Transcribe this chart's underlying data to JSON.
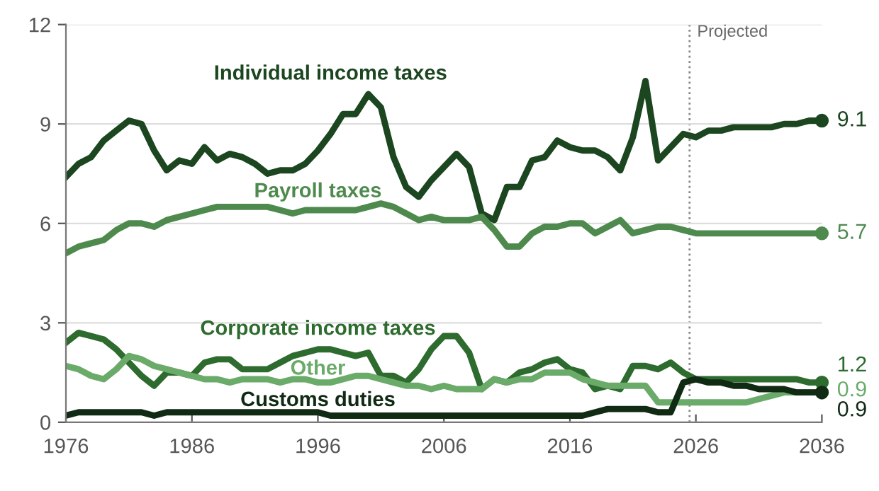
{
  "chart_data": {
    "type": "line",
    "x": [
      1976,
      1977,
      1978,
      1979,
      1980,
      1981,
      1982,
      1983,
      1984,
      1985,
      1986,
      1987,
      1988,
      1989,
      1990,
      1991,
      1992,
      1993,
      1994,
      1995,
      1996,
      1997,
      1998,
      1999,
      2000,
      2001,
      2002,
      2003,
      2004,
      2005,
      2006,
      2007,
      2008,
      2009,
      2010,
      2011,
      2012,
      2013,
      2014,
      2015,
      2016,
      2017,
      2018,
      2019,
      2020,
      2021,
      2022,
      2023,
      2024,
      2025,
      2026,
      2027,
      2028,
      2029,
      2030,
      2031,
      2032,
      2033,
      2034,
      2035,
      2036
    ],
    "series": [
      {
        "name": "Individual income taxes",
        "color": "#1b4620",
        "values": [
          7.4,
          7.8,
          8.0,
          8.5,
          8.8,
          9.1,
          9.0,
          8.2,
          7.6,
          7.9,
          7.8,
          8.3,
          7.9,
          8.1,
          8.0,
          7.8,
          7.5,
          7.6,
          7.6,
          7.8,
          8.2,
          8.7,
          9.3,
          9.3,
          9.9,
          9.5,
          8.0,
          7.1,
          6.8,
          7.3,
          7.7,
          8.1,
          7.7,
          6.3,
          6.1,
          7.1,
          7.1,
          7.9,
          8.0,
          8.5,
          8.3,
          8.2,
          8.2,
          8.0,
          7.6,
          8.6,
          10.3,
          7.9,
          8.3,
          8.7,
          8.6,
          8.8,
          8.8,
          8.9,
          8.9,
          8.9,
          8.9,
          9.0,
          9.0,
          9.1,
          9.1
        ],
        "value_labels": [
          null,
          null,
          null,
          null,
          null,
          null,
          null,
          null,
          null,
          null,
          null,
          null,
          null,
          null,
          null,
          null,
          null,
          null,
          null,
          null,
          null,
          null,
          null,
          null,
          null,
          null,
          null,
          null,
          null,
          null,
          null,
          null,
          null,
          null,
          null,
          null,
          null,
          null,
          null,
          null,
          null,
          null,
          null,
          null,
          null,
          null,
          null,
          null,
          null,
          null,
          null,
          null,
          null,
          null,
          null,
          null,
          null,
          null,
          null,
          null,
          "9.1"
        ]
      },
      {
        "name": "Payroll taxes",
        "color": "#4e8a4e",
        "values": [
          5.1,
          5.3,
          5.4,
          5.5,
          5.8,
          6.0,
          6.0,
          5.9,
          6.1,
          6.2,
          6.3,
          6.4,
          6.5,
          6.5,
          6.5,
          6.5,
          6.5,
          6.4,
          6.3,
          6.4,
          6.4,
          6.4,
          6.4,
          6.4,
          6.5,
          6.6,
          6.5,
          6.3,
          6.1,
          6.2,
          6.1,
          6.1,
          6.1,
          6.2,
          5.8,
          5.3,
          5.3,
          5.7,
          5.9,
          5.9,
          6.0,
          6.0,
          5.7,
          5.9,
          6.1,
          5.7,
          5.8,
          5.9,
          5.9,
          5.8,
          5.7,
          5.7,
          5.7,
          5.7,
          5.7,
          5.7,
          5.7,
          5.7,
          5.7,
          5.7,
          5.7
        ],
        "value_labels": [
          null,
          null,
          null,
          null,
          null,
          null,
          null,
          null,
          null,
          null,
          null,
          null,
          null,
          null,
          null,
          null,
          null,
          null,
          null,
          null,
          null,
          null,
          null,
          null,
          null,
          null,
          null,
          null,
          null,
          null,
          null,
          null,
          null,
          null,
          null,
          null,
          null,
          null,
          null,
          null,
          null,
          null,
          null,
          null,
          null,
          null,
          null,
          null,
          null,
          null,
          null,
          null,
          null,
          null,
          null,
          null,
          null,
          null,
          null,
          null,
          "5.7"
        ]
      },
      {
        "name": "Corporate income taxes",
        "color": "#2e6b2e",
        "values": [
          2.4,
          2.7,
          2.6,
          2.5,
          2.2,
          1.8,
          1.4,
          1.1,
          1.5,
          1.5,
          1.4,
          1.8,
          1.9,
          1.9,
          1.6,
          1.6,
          1.6,
          1.8,
          2.0,
          2.1,
          2.2,
          2.2,
          2.1,
          2.0,
          2.1,
          1.4,
          1.4,
          1.2,
          1.6,
          2.2,
          2.6,
          2.6,
          2.1,
          1.0,
          1.3,
          1.2,
          1.5,
          1.6,
          1.8,
          1.9,
          1.6,
          1.5,
          1.0,
          1.1,
          1.0,
          1.7,
          1.7,
          1.6,
          1.8,
          1.5,
          1.3,
          1.3,
          1.3,
          1.3,
          1.3,
          1.3,
          1.3,
          1.3,
          1.3,
          1.2,
          1.2
        ],
        "value_labels": [
          null,
          null,
          null,
          null,
          null,
          null,
          null,
          null,
          null,
          null,
          null,
          null,
          null,
          null,
          null,
          null,
          null,
          null,
          null,
          null,
          null,
          null,
          null,
          null,
          null,
          null,
          null,
          null,
          null,
          null,
          null,
          null,
          null,
          null,
          null,
          null,
          null,
          null,
          null,
          null,
          null,
          null,
          null,
          null,
          null,
          null,
          null,
          null,
          null,
          null,
          null,
          null,
          null,
          null,
          null,
          null,
          null,
          null,
          null,
          null,
          "1.2"
        ]
      },
      {
        "name": "Other",
        "color": "#6aab6a",
        "values": [
          1.7,
          1.6,
          1.4,
          1.3,
          1.6,
          2.0,
          1.9,
          1.7,
          1.6,
          1.5,
          1.4,
          1.3,
          1.3,
          1.2,
          1.3,
          1.3,
          1.3,
          1.2,
          1.3,
          1.3,
          1.2,
          1.2,
          1.3,
          1.4,
          1.4,
          1.3,
          1.2,
          1.1,
          1.1,
          1.0,
          1.1,
          1.0,
          1.0,
          1.0,
          1.3,
          1.2,
          1.3,
          1.3,
          1.5,
          1.5,
          1.5,
          1.3,
          1.2,
          1.1,
          1.1,
          1.1,
          1.1,
          0.6,
          0.6,
          0.6,
          0.6,
          0.6,
          0.6,
          0.6,
          0.6,
          0.7,
          0.8,
          0.9,
          0.9,
          0.9,
          0.9
        ],
        "value_labels": [
          null,
          null,
          null,
          null,
          null,
          null,
          null,
          null,
          null,
          null,
          null,
          null,
          null,
          null,
          null,
          null,
          null,
          null,
          null,
          null,
          null,
          null,
          null,
          null,
          null,
          null,
          null,
          null,
          null,
          null,
          null,
          null,
          null,
          null,
          null,
          null,
          null,
          null,
          null,
          null,
          null,
          null,
          null,
          null,
          null,
          null,
          null,
          null,
          null,
          null,
          null,
          null,
          null,
          null,
          null,
          null,
          null,
          null,
          null,
          null,
          "0.9"
        ]
      },
      {
        "name": "Customs duties",
        "color": "#102a14",
        "values": [
          0.2,
          0.3,
          0.3,
          0.3,
          0.3,
          0.3,
          0.3,
          0.2,
          0.3,
          0.3,
          0.3,
          0.3,
          0.3,
          0.3,
          0.3,
          0.3,
          0.3,
          0.3,
          0.3,
          0.3,
          0.3,
          0.2,
          0.2,
          0.2,
          0.2,
          0.2,
          0.2,
          0.2,
          0.2,
          0.2,
          0.2,
          0.2,
          0.2,
          0.2,
          0.2,
          0.2,
          0.2,
          0.2,
          0.2,
          0.2,
          0.2,
          0.2,
          0.3,
          0.4,
          0.4,
          0.4,
          0.4,
          0.3,
          0.3,
          1.2,
          1.3,
          1.2,
          1.2,
          1.1,
          1.1,
          1.0,
          1.0,
          1.0,
          0.9,
          0.9,
          0.9
        ],
        "value_labels": [
          null,
          null,
          null,
          null,
          null,
          null,
          null,
          null,
          null,
          null,
          null,
          null,
          null,
          null,
          null,
          null,
          null,
          null,
          null,
          null,
          null,
          null,
          null,
          null,
          null,
          null,
          null,
          null,
          null,
          null,
          null,
          null,
          null,
          null,
          null,
          null,
          null,
          null,
          null,
          null,
          null,
          null,
          null,
          null,
          null,
          null,
          null,
          null,
          null,
          null,
          null,
          null,
          null,
          null,
          null,
          null,
          null,
          null,
          null,
          null,
          "0.9"
        ]
      }
    ],
    "xlim": [
      1976,
      2036
    ],
    "xticks": [
      1976,
      1986,
      1996,
      2006,
      2016,
      2026,
      2036
    ],
    "ylim": [
      0,
      12
    ],
    "yticks": [
      0,
      3,
      6,
      9,
      12
    ],
    "grid": "y",
    "legend": false,
    "line_style": "solid",
    "ref_lines": [
      {
        "axis": "x",
        "value": 2025.5,
        "label": "Projected",
        "color": "#888888",
        "line_style": "dotted"
      }
    ]
  }
}
